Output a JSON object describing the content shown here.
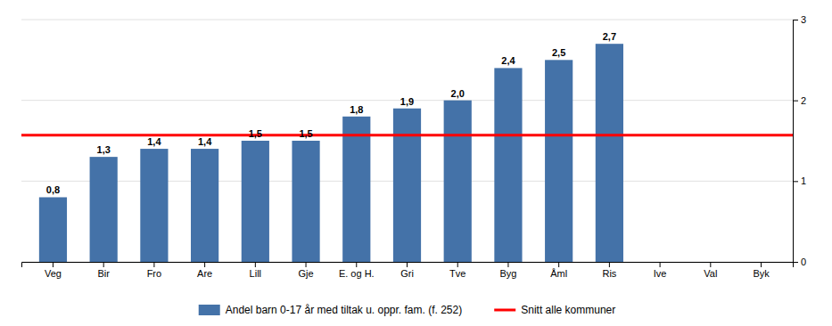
{
  "chart_data": {
    "type": "bar",
    "categories": [
      "Veg",
      "Bir",
      "Fro",
      "Are",
      "Lill",
      "Gje",
      "E. og H.",
      "Gri",
      "Tve",
      "Byg",
      "Åml",
      "Ris",
      "Ive",
      "Val",
      "Byk"
    ],
    "series": [
      {
        "name": "Andel barn 0-17 år med tiltak u. oppr. fam. (f. 252)",
        "color": "#4472a8",
        "values": [
          0.8,
          1.3,
          1.4,
          1.4,
          1.5,
          1.5,
          1.8,
          1.9,
          2.0,
          2.4,
          2.5,
          2.7,
          0,
          0,
          0
        ],
        "value_labels": [
          "0,8",
          "1,3",
          "1,4",
          "1,4",
          "1,5",
          "1,5",
          "1,8",
          "1,9",
          "2,0",
          "2,4",
          "2,5",
          "2,7",
          null,
          null,
          null
        ]
      }
    ],
    "reference_line": {
      "name": "Snitt alle kommuner",
      "value": 1.57,
      "color": "#ff0000"
    },
    "ylim": [
      0,
      3
    ],
    "yticks": [
      0,
      1,
      2,
      3
    ],
    "grid": true,
    "data_labels": true,
    "legend": "bottom"
  }
}
